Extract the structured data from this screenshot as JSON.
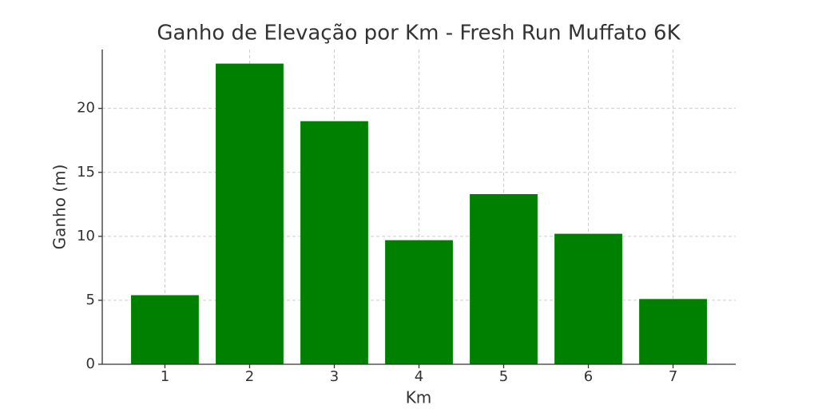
{
  "chart_data": {
    "type": "bar",
    "title": "Ganho de Elevação por Km - Fresh Run Muffato 6K",
    "xlabel": "Km",
    "ylabel": "Ganho (m)",
    "x": [
      1,
      2,
      3,
      4,
      5,
      6,
      7
    ],
    "values": [
      5.4,
      23.5,
      19.0,
      9.7,
      13.3,
      10.2,
      5.1
    ],
    "color": "#008000",
    "xlim": [
      0.26,
      7.74
    ],
    "xticks": [
      1,
      2,
      3,
      4,
      5,
      6,
      7
    ],
    "ylim": [
      0,
      24.6
    ],
    "yticks": [
      0,
      5,
      10,
      15,
      20
    ],
    "grid": true
  }
}
